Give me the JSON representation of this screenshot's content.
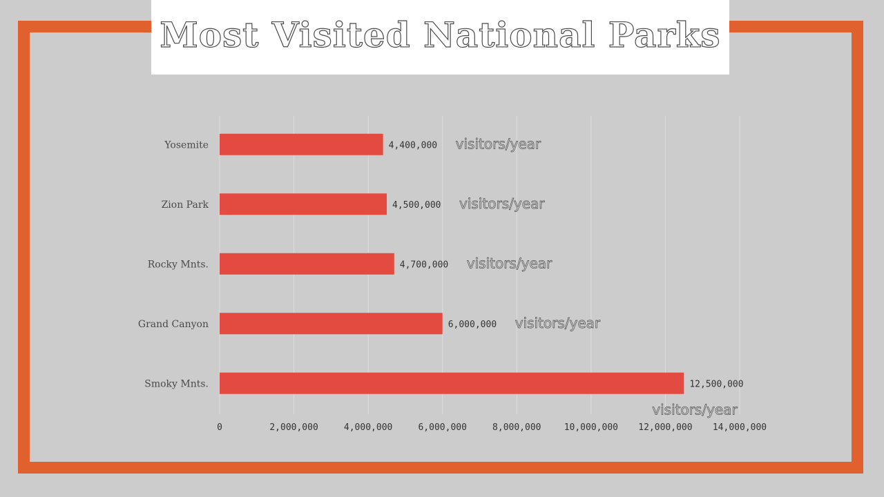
{
  "page": {
    "accent_color": "#e0612e",
    "background_color": "#cccccc"
  },
  "chart_data": {
    "type": "bar",
    "orientation": "horizontal",
    "title": "Most Visited National Parks",
    "categories": [
      "Yosemite",
      "Zion Park",
      "Rocky Mnts.",
      "Grand Canyon",
      "Smoky Mnts."
    ],
    "values": [
      4400000,
      4500000,
      4700000,
      6000000,
      12500000
    ],
    "data_labels": [
      "4,400,000",
      "4,500,000",
      "4,700,000",
      "6,000,000",
      "12,500,000"
    ],
    "unit_annotation": "visitors/year",
    "x_ticks": [
      "0",
      "2,000,000",
      "4,000,000",
      "6,000,000",
      "8,000,000",
      "10,000,000",
      "12,000,000",
      "14,000,000"
    ],
    "xlim": [
      0,
      14000000
    ],
    "bar_color": "#e34a40",
    "grid": true,
    "legend": "none"
  }
}
